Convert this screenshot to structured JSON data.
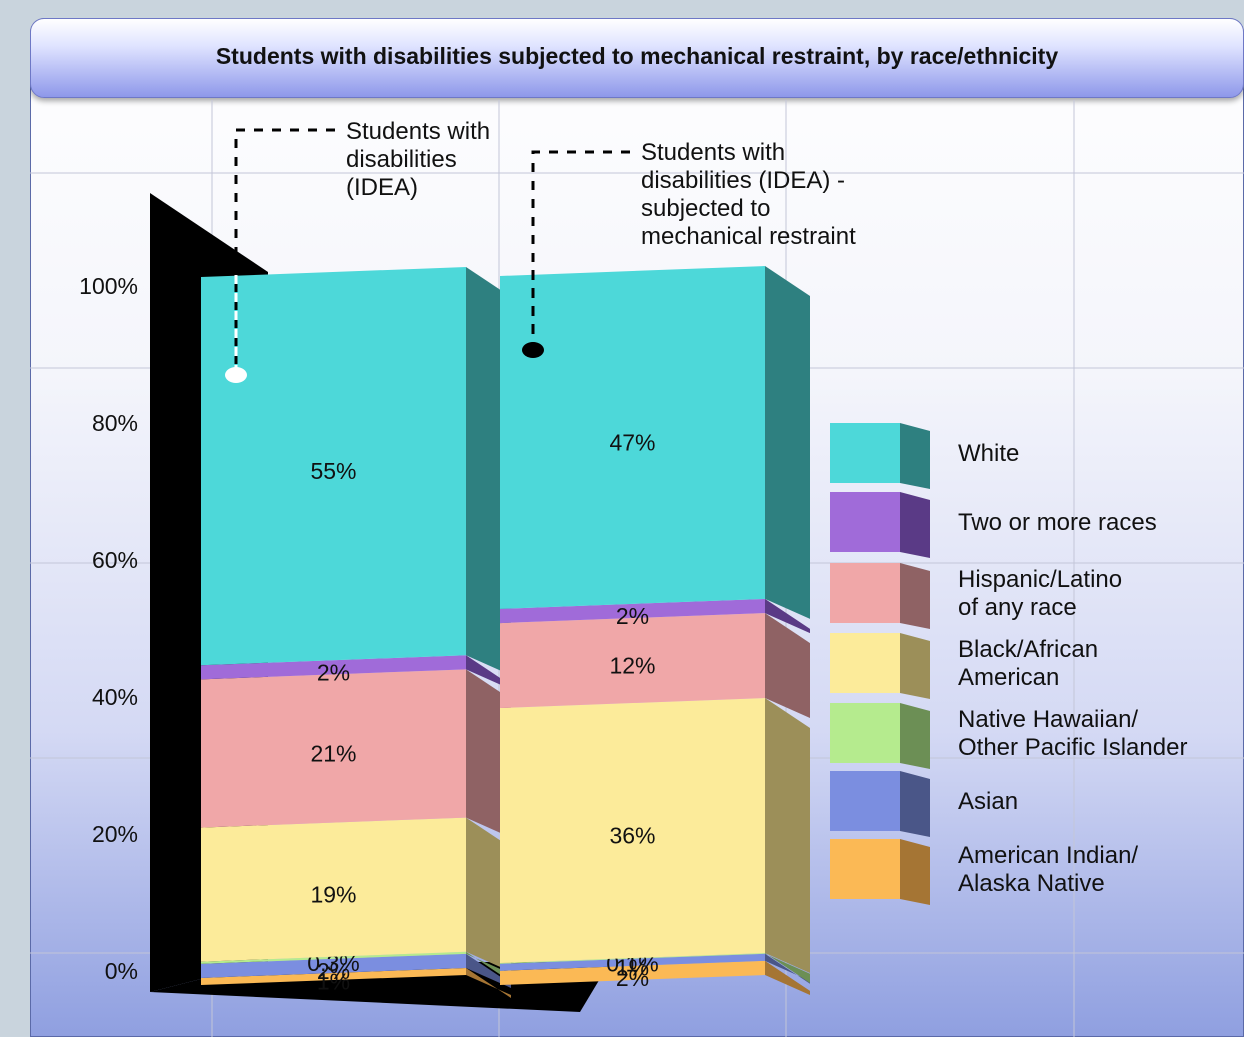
{
  "chart_data": {
    "type": "bar",
    "stacked": true,
    "title": "Students with disabilities subjected to mechanical restraint, by race/ethnicity",
    "categories": [
      "Students with disabilities (IDEA)",
      "Students with disabilities (IDEA) - subjected to mechanical restraint"
    ],
    "category_label_lines": [
      [
        "Students with",
        "disabilities",
        "(IDEA)"
      ],
      [
        "Students with",
        "disabilities (IDEA) -",
        "subjected to",
        "mechanical restraint"
      ]
    ],
    "series": [
      {
        "name": "American Indian/ Alaska Native",
        "legend_lines": [
          "American Indian/",
          "Alaska Native"
        ],
        "values": [
          1,
          2
        ],
        "labels": [
          "1%",
          "2%"
        ],
        "color": "#fbb955",
        "side_color": "#a57534"
      },
      {
        "name": "Asian",
        "legend_lines": [
          "Asian"
        ],
        "values": [
          2,
          1
        ],
        "labels": [
          "2%",
          "1%"
        ],
        "color": "#7b8ee0",
        "side_color": "#4a5688"
      },
      {
        "name": "Native Hawaiian/ Other Pacific Islander",
        "legend_lines": [
          "Native Hawaiian/",
          "Other Pacific Islander"
        ],
        "values": [
          0.3,
          0.1
        ],
        "labels": [
          "0.3%",
          "0.1%"
        ],
        "color": "#b5eb8e",
        "side_color": "#6c8f55"
      },
      {
        "name": "Black/African American",
        "legend_lines": [
          "Black/African",
          "American"
        ],
        "values": [
          19,
          36
        ],
        "labels": [
          "19%",
          "36%"
        ],
        "color": "#fceb9a",
        "side_color": "#9c8f59"
      },
      {
        "name": "Hispanic/Latino of any race",
        "legend_lines": [
          "Hispanic/Latino",
          "of any race"
        ],
        "values": [
          21,
          12
        ],
        "labels": [
          "21%",
          "12%"
        ],
        "color": "#f0a7a8",
        "side_color": "#8f6264"
      },
      {
        "name": "Two or more races",
        "legend_lines": [
          "Two or more races"
        ],
        "values": [
          2,
          2
        ],
        "labels": [
          "2%",
          "2%"
        ],
        "color": "#a06bd9",
        "side_color": "#5a3a86"
      },
      {
        "name": "White",
        "legend_lines": [
          "White"
        ],
        "values": [
          55,
          47
        ],
        "labels": [
          "55%",
          "47%"
        ],
        "color": "#4dd8d9",
        "side_color": "#2e8080"
      }
    ],
    "yticks": [
      "0%",
      "20%",
      "40%",
      "60%",
      "80%",
      "100%"
    ],
    "ylim": [
      0,
      100
    ],
    "grid": true,
    "legend_position": "right"
  }
}
